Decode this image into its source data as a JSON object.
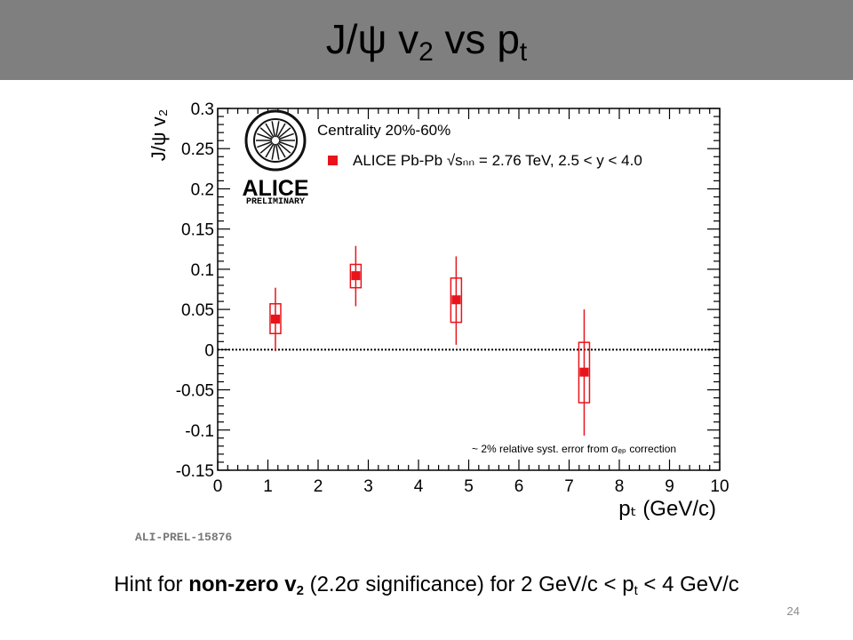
{
  "slide": {
    "title_main": "J/ψ  v",
    "title_sub": "2",
    "title_mid": "  vs p",
    "title_sub2": "t",
    "page_number": "24",
    "hint": {
      "prefix": "Hint for ",
      "bold": "non-zero v",
      "bold_sub": "2",
      "rest": " (2.2σ significance) for 2 GeV/c < p",
      "rest_sub": "t",
      "end": " < 4 GeV/c"
    }
  },
  "figure": {
    "logo_text": "ALICE",
    "logo_sub": "PRELIMINARY",
    "figure_id": "ALI-PREL-15876"
  },
  "chart_data": {
    "type": "scatter",
    "ylabel": "J/ψ v₂",
    "xlabel": "pₜ (GeV/c)",
    "xlim": [
      0,
      10
    ],
    "ylim": [
      -0.15,
      0.3
    ],
    "x_ticks": [
      "0",
      "1",
      "2",
      "3",
      "4",
      "5",
      "6",
      "7",
      "8",
      "9",
      "10"
    ],
    "y_ticks": [
      "-0.15",
      "-0.1",
      "-0.05",
      "0",
      "0.05",
      "0.1",
      "0.15",
      "0.2",
      "0.25",
      "0.3"
    ],
    "legend_header": "Centrality 20%-60%",
    "legend_entry": "ALICE Pb-Pb  √sₙₙ = 2.76 TeV, 2.5 < y < 4.0",
    "annotation": "~ 2% relative syst. error from σₑₚ correction",
    "reference_line_y": 0,
    "series": [
      {
        "name": "ALICE Pb-Pb",
        "color": "#e8141a",
        "points": [
          {
            "x": 1.15,
            "y": 0.038,
            "stat_lo": -0.002,
            "stat_hi": 0.077,
            "sys_lo": 0.02,
            "sys_hi": 0.057
          },
          {
            "x": 2.75,
            "y": 0.092,
            "stat_lo": 0.054,
            "stat_hi": 0.129,
            "sys_lo": 0.077,
            "sys_hi": 0.106
          },
          {
            "x": 4.75,
            "y": 0.062,
            "stat_lo": 0.006,
            "stat_hi": 0.116,
            "sys_lo": 0.034,
            "sys_hi": 0.089
          },
          {
            "x": 7.3,
            "y": -0.028,
            "stat_lo": -0.107,
            "stat_hi": 0.05,
            "sys_lo": -0.066,
            "sys_hi": 0.009
          }
        ]
      }
    ]
  }
}
